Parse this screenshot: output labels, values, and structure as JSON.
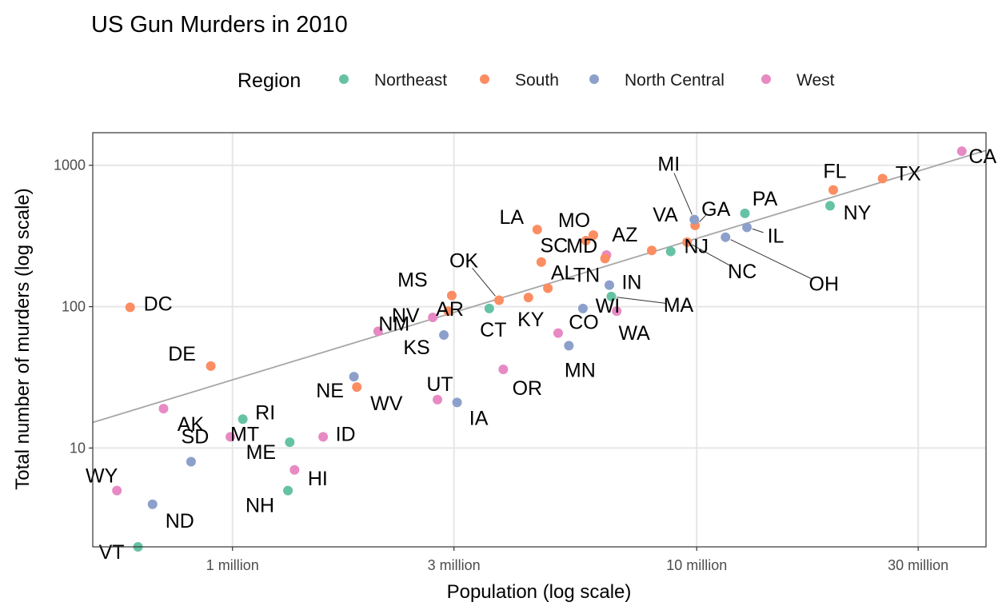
{
  "chart_data": {
    "type": "scatter",
    "title": "US Gun Murders in 2010",
    "xlabel": "Population (log scale)",
    "ylabel": "Total number of murders (log scale)",
    "x_scale": "log10",
    "y_scale": "log10",
    "xlim": [
      500000,
      42000000
    ],
    "ylim": [
      2,
      1700
    ],
    "grid": true,
    "x_ticks": [
      {
        "value": 1000000,
        "label": "1 million"
      },
      {
        "value": 3000000,
        "label": "3 million"
      },
      {
        "value": 10000000,
        "label": "10 million"
      },
      {
        "value": 30000000,
        "label": "30 million"
      }
    ],
    "y_ticks": [
      {
        "value": 10,
        "label": "10"
      },
      {
        "value": 100,
        "label": "100"
      },
      {
        "value": 1000,
        "label": "1000"
      }
    ],
    "legend": {
      "title": "Region",
      "placement": "top",
      "entries": [
        {
          "name": "Northeast",
          "color": "#66C2A5"
        },
        {
          "name": "South",
          "color": "#FC8D62"
        },
        {
          "name": "North Central",
          "color": "#8DA0CB"
        },
        {
          "name": "West",
          "color": "#E78AC3"
        }
      ]
    },
    "fit_line": {
      "rate_per_million": 30.35
    },
    "points": [
      {
        "abb": "AL",
        "region": "South",
        "population": 4779736,
        "murders": 135
      },
      {
        "abb": "AK",
        "region": "West",
        "population": 710231,
        "murders": 19
      },
      {
        "abb": "AZ",
        "region": "West",
        "population": 6392017,
        "murders": 232
      },
      {
        "abb": "AR",
        "region": "South",
        "population": 2915918,
        "murders": 93
      },
      {
        "abb": "CA",
        "region": "West",
        "population": 37253956,
        "murders": 1257
      },
      {
        "abb": "CO",
        "region": "West",
        "population": 5029196,
        "murders": 65
      },
      {
        "abb": "CT",
        "region": "Northeast",
        "population": 3574097,
        "murders": 97
      },
      {
        "abb": "DE",
        "region": "South",
        "population": 897934,
        "murders": 38
      },
      {
        "abb": "DC",
        "region": "South",
        "population": 601723,
        "murders": 99
      },
      {
        "abb": "FL",
        "region": "South",
        "population": 19687653,
        "murders": 669
      },
      {
        "abb": "GA",
        "region": "South",
        "population": 9920000,
        "murders": 376
      },
      {
        "abb": "HI",
        "region": "West",
        "population": 1360301,
        "murders": 7
      },
      {
        "abb": "ID",
        "region": "West",
        "population": 1567582,
        "murders": 12
      },
      {
        "abb": "IL",
        "region": "North Central",
        "population": 12830632,
        "murders": 364
      },
      {
        "abb": "IN",
        "region": "North Central",
        "population": 6483802,
        "murders": 142
      },
      {
        "abb": "IA",
        "region": "North Central",
        "population": 3046355,
        "murders": 21
      },
      {
        "abb": "KS",
        "region": "North Central",
        "population": 2853118,
        "murders": 63
      },
      {
        "abb": "KY",
        "region": "South",
        "population": 4339367,
        "murders": 116
      },
      {
        "abb": "LA",
        "region": "South",
        "population": 4533372,
        "murders": 351
      },
      {
        "abb": "ME",
        "region": "Northeast",
        "population": 1328361,
        "murders": 11
      },
      {
        "abb": "MD",
        "region": "South",
        "population": 5773552,
        "murders": 293
      },
      {
        "abb": "MA",
        "region": "Northeast",
        "population": 6547629,
        "murders": 118
      },
      {
        "abb": "MI",
        "region": "North Central",
        "population": 9883640,
        "murders": 413
      },
      {
        "abb": "MN",
        "region": "North Central",
        "population": 5303925,
        "murders": 53
      },
      {
        "abb": "MS",
        "region": "South",
        "population": 2967297,
        "murders": 120
      },
      {
        "abb": "MO",
        "region": "South",
        "population": 5988927,
        "murders": 321
      },
      {
        "abb": "MT",
        "region": "West",
        "population": 989415,
        "murders": 12
      },
      {
        "abb": "NE",
        "region": "North Central",
        "population": 1826341,
        "murders": 32
      },
      {
        "abb": "NV",
        "region": "West",
        "population": 2700551,
        "murders": 84
      },
      {
        "abb": "NH",
        "region": "Northeast",
        "population": 1316470,
        "murders": 5
      },
      {
        "abb": "NJ",
        "region": "Northeast",
        "population": 8791894,
        "murders": 246
      },
      {
        "abb": "NM",
        "region": "West",
        "population": 2059179,
        "murders": 67
      },
      {
        "abb": "NY",
        "region": "Northeast",
        "population": 19378102,
        "murders": 517
      },
      {
        "abb": "NC",
        "region": "South",
        "population": 9535483,
        "murders": 286
      },
      {
        "abb": "ND",
        "region": "North Central",
        "population": 672591,
        "murders": 4
      },
      {
        "abb": "OH",
        "region": "North Central",
        "population": 11536504,
        "murders": 310
      },
      {
        "abb": "OK",
        "region": "South",
        "population": 3751351,
        "murders": 111
      },
      {
        "abb": "OR",
        "region": "West",
        "population": 3831074,
        "murders": 36
      },
      {
        "abb": "PA",
        "region": "Northeast",
        "population": 12702379,
        "murders": 457
      },
      {
        "abb": "RI",
        "region": "Northeast",
        "population": 1052567,
        "murders": 16
      },
      {
        "abb": "SC",
        "region": "South",
        "population": 4625364,
        "murders": 207
      },
      {
        "abb": "SD",
        "region": "North Central",
        "population": 814180,
        "murders": 8
      },
      {
        "abb": "TN",
        "region": "South",
        "population": 6346105,
        "murders": 219
      },
      {
        "abb": "TX",
        "region": "South",
        "population": 25145561,
        "murders": 805
      },
      {
        "abb": "UT",
        "region": "West",
        "population": 2763885,
        "murders": 22
      },
      {
        "abb": "VT",
        "region": "Northeast",
        "population": 625741,
        "murders": 2
      },
      {
        "abb": "VA",
        "region": "South",
        "population": 8001024,
        "murders": 250
      },
      {
        "abb": "WA",
        "region": "West",
        "population": 6724540,
        "murders": 93
      },
      {
        "abb": "WV",
        "region": "South",
        "population": 1852994,
        "murders": 27
      },
      {
        "abb": "WI",
        "region": "North Central",
        "population": 5686986,
        "murders": 97
      },
      {
        "abb": "WY",
        "region": "West",
        "population": 563626,
        "murders": 5
      }
    ]
  }
}
